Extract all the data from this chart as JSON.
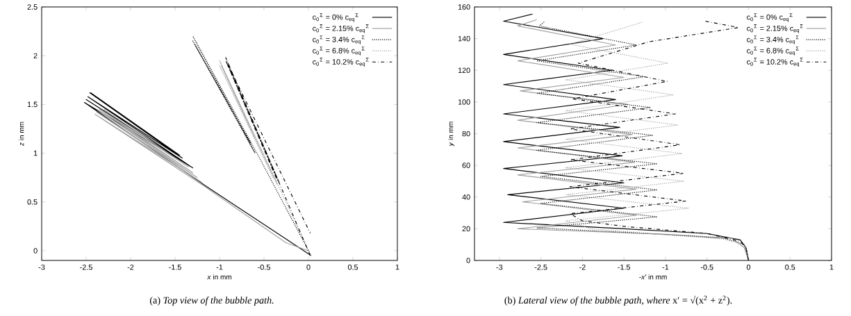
{
  "chart_data": [
    {
      "type": "line",
      "xlabel": "*x* in mm",
      "ylabel": "*z* in mm",
      "xlim": [
        -3,
        1
      ],
      "ylim": [
        -0.1,
        2.5
      ],
      "xticks": [
        -3,
        -2.5,
        -2,
        -1.5,
        -1,
        -0.5,
        0,
        0.5,
        1
      ],
      "yticks": [
        0,
        0.5,
        1,
        1.5,
        2,
        2.5
      ],
      "legend": "top right",
      "grid": false,
      "annotations": [
        "(a) *Top view of the bubble path.*"
      ],
      "series": [
        {
          "name": "c$_{0}$$^{Σ}$ = 0% c$_{eq}$$^{Σ}$",
          "color": "#000000",
          "line_style": "solid",
          "x": [
            0.03,
            -1.15,
            -2.52,
            -1.3,
            -2.5,
            -1.35,
            -2.48,
            -1.42,
            -2.46,
            -1.45,
            -2.45
          ],
          "values": [
            -0.05,
            0.66,
            1.52,
            0.85,
            1.55,
            0.88,
            1.58,
            0.95,
            1.62,
            0.98,
            1.62
          ]
        },
        {
          "name": "c$_{0}$$^{Σ}$ = 2.15% c$_{eq}$$^{Σ}$",
          "color": "#a0a0a0",
          "line_style": "solid",
          "x": [
            0,
            -0.25,
            -1.17,
            -2.4,
            -1.2,
            -2.38,
            -1.25,
            -2.38,
            -1.3,
            -2.35,
            -1.35,
            -2.3
          ],
          "values": [
            0,
            0.08,
            0.66,
            1.4,
            0.7,
            1.42,
            0.75,
            1.45,
            0.8,
            1.45,
            0.86,
            1.45
          ]
        },
        {
          "name": "c$_{0}$$^{Σ}$ = 3.4% c$_{eq}$$^{Σ}$",
          "color": "#000000",
          "line_style": "dotted",
          "x": [
            0.03,
            -0.55,
            -1.3,
            -0.6,
            -1.3,
            -0.65,
            -1.28
          ],
          "values": [
            -0.05,
            0.95,
            2.2,
            1.0,
            2.15,
            1.1,
            2.12
          ]
        },
        {
          "name": "c$_{0}$$^{Σ}$ = 6.8% c$_{eq}$$^{Σ}$",
          "color": "#a0a0a0",
          "line_style": "dotted",
          "x": [
            0.03,
            -1.0,
            -0.35,
            -1.0,
            -0.4,
            -0.98,
            -0.6
          ],
          "values": [
            -0.05,
            1.95,
            0.68,
            1.9,
            0.75,
            1.9,
            1.15
          ]
        },
        {
          "name": "c$_{0}$$^{Σ}$ = 10.2% c$_{eq}$$^{Σ}$",
          "color": "#000000",
          "line_style": "dashdot",
          "x": [
            0.02,
            -0.93,
            -0.33,
            -0.93,
            -0.35,
            -0.9,
            0.02
          ],
          "values": [
            -0.05,
            1.98,
            0.7,
            1.95,
            0.72,
            1.9,
            0.18
          ]
        }
      ]
    },
    {
      "type": "line",
      "xlabel": "-*x′* in mm",
      "ylabel": "*y* in mm",
      "xlim": [
        -3.3,
        1
      ],
      "ylim": [
        0,
        160
      ],
      "xticks": [
        -3,
        -2.5,
        -2,
        -1.5,
        -1,
        -0.5,
        0,
        0.5,
        1
      ],
      "yticks": [
        0,
        20,
        40,
        60,
        80,
        100,
        120,
        140,
        160
      ],
      "legend": "top right",
      "grid": false,
      "annotations": [
        "(b) *Lateral view of the bubble path, where* x′ = √(x$^{2}$ + z$^{2}$)."
      ],
      "series": [
        {
          "name": "c$_{0}$$^{Σ}$ = 0% c$_{eq}$$^{Σ}$",
          "color": "#000000",
          "line_style": "solid",
          "x": [
            0,
            -0.03,
            -0.1,
            -0.5,
            -1.5,
            -2.95,
            -1.5,
            -2.9,
            -1.5,
            -2.95,
            -1.52,
            -2.95,
            -1.55,
            -2.95,
            -1.6,
            -2.95,
            -1.65,
            -2.95,
            -1.75,
            -2.95,
            -2.6
          ],
          "values": [
            0,
            8,
            13,
            17,
            20,
            24,
            33,
            41.5,
            49,
            58,
            66,
            75,
            84,
            92.5,
            101.5,
            111,
            120,
            130,
            140,
            151,
            155.5
          ]
        },
        {
          "name": "c$_{0}$$^{Σ}$ = 2.15% c$_{eq}$$^{Σ}$",
          "color": "#a0a0a0",
          "line_style": "solid",
          "x": [
            0,
            -0.05,
            -0.2,
            -1,
            -2.78,
            -1.35,
            -2.72,
            -1.35,
            -2.78,
            -1.37,
            -2.78,
            -1.4,
            -2.78,
            -1.45,
            -2.75,
            -1.5,
            -2.78,
            -1.6,
            -2.78,
            -2.55
          ],
          "values": [
            0,
            8,
            14,
            16.5,
            20,
            28.5,
            37,
            45,
            54,
            62,
            71,
            79.5,
            88.5,
            98.5,
            107,
            115.5,
            126,
            136,
            148,
            152
          ]
        },
        {
          "name": "c$_{0}$$^{Σ}$ = 3.4% c$_{eq}$$^{Σ}$",
          "color": "#000000",
          "line_style": "dotted",
          "x": [
            0,
            -0.05,
            -0.3,
            -1.2,
            -2.55,
            -1.1,
            -2.5,
            -1.1,
            -2.5,
            -1.1,
            -2.55,
            -1.15,
            -2.55,
            -1.18,
            -2.55,
            -1.25,
            -2.55,
            -1.35,
            -2.52,
            -2.45
          ],
          "values": [
            0,
            10,
            14,
            17,
            20.5,
            27.5,
            36,
            44.5,
            53,
            61,
            69.5,
            79,
            87,
            96.5,
            105.5,
            116,
            126,
            136,
            148,
            151
          ]
        },
        {
          "name": "c$_{0}$$^{Σ}$ = 6.8% c$_{eq}$$^{Σ}$",
          "color": "#a0a0a0",
          "line_style": "dotted",
          "x": [
            0,
            -0.05,
            -0.3,
            -1.2,
            -1.9,
            -2.2,
            -0.72,
            -2.2,
            -0.78,
            -2.2,
            -0.8,
            -2.2,
            -0.85,
            -2.2,
            -0.9,
            -2.2,
            -0.97,
            -2.15,
            -1.27
          ],
          "values": [
            0,
            10,
            13.5,
            17,
            20,
            25,
            33,
            41.5,
            50,
            58.5,
            67.5,
            76.5,
            85.5,
            94.5,
            104.5,
            114,
            124.5,
            136.5,
            150.5
          ]
        },
        {
          "name": "c$_{0}$$^{Σ}$ = 10.2% c$_{eq}$$^{Σ}$",
          "color": "#000000",
          "line_style": "dashdot",
          "x": [
            0,
            -0.03,
            -0.1,
            -0.5,
            -1.5,
            -2.0,
            -2.15,
            -0.75,
            -2.15,
            -0.78,
            -2.15,
            -0.82,
            -2.15,
            -0.88,
            -2.12,
            -0.98,
            -2.05,
            -1.2,
            -0.12,
            -0.52
          ],
          "values": [
            0,
            8,
            12,
            17,
            21.5,
            25,
            29.5,
            37.5,
            46.5,
            55,
            63.5,
            73,
            83,
            92.5,
            102,
            113,
            124.5,
            138,
            147,
            151
          ]
        }
      ]
    }
  ]
}
